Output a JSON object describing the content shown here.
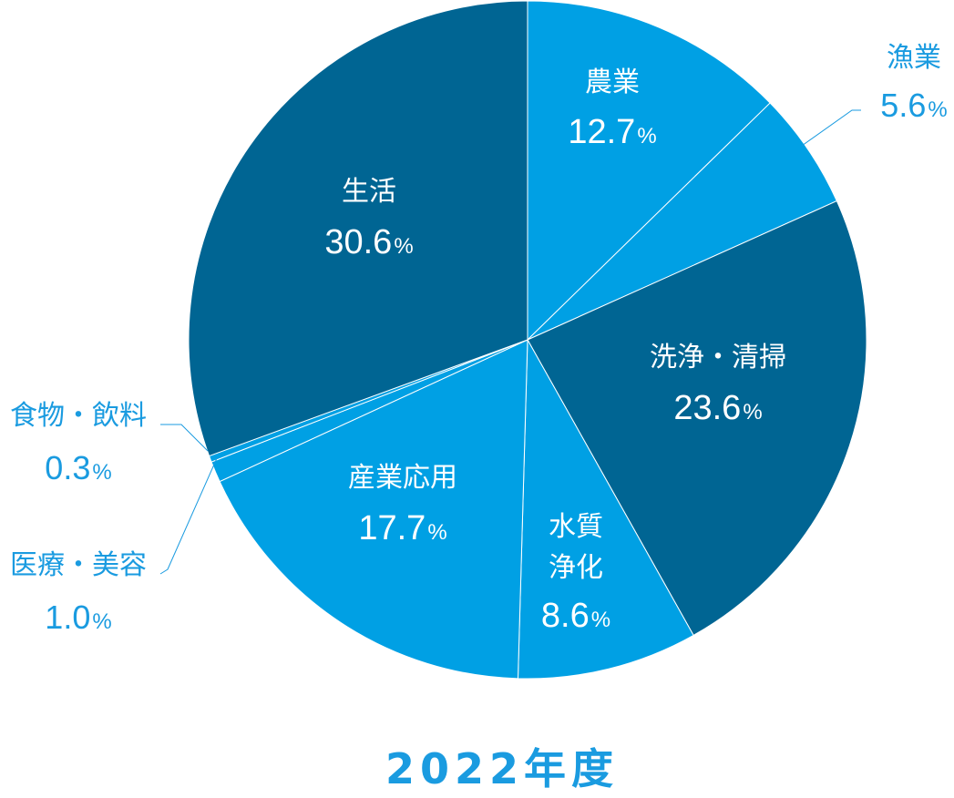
{
  "chart_data": {
    "type": "pie",
    "title": "2022年度",
    "unit": "%",
    "start_angle_deg": 0,
    "direction": "clockwise",
    "colors": {
      "dark": "#006593",
      "light": "#00a0e4",
      "outer_text": "#1a9be0",
      "leader_line": "#1a9be0",
      "separator": "#ffffff"
    },
    "slices": [
      {
        "label": "農業",
        "value": 12.7,
        "color": "#00a0e4",
        "label_placement": "inside"
      },
      {
        "label": "漁業",
        "value": 5.6,
        "color": "#00a0e4",
        "label_placement": "outside"
      },
      {
        "label": "洗浄・清掃",
        "value": 23.6,
        "color": "#006593",
        "label_placement": "inside"
      },
      {
        "label": "水質浄化",
        "label_lines": [
          "水質",
          "浄化"
        ],
        "value": 8.6,
        "color": "#00a0e4",
        "label_placement": "inside"
      },
      {
        "label": "産業応用",
        "value": 17.7,
        "color": "#00a0e4",
        "label_placement": "inside"
      },
      {
        "label": "医療・美容",
        "value": 1.0,
        "color": "#00a0e4",
        "label_placement": "outside"
      },
      {
        "label": "食物・飲料",
        "value": 0.3,
        "color": "#00a0e4",
        "label_placement": "outside"
      },
      {
        "label": "生活",
        "value": 30.6,
        "color": "#006593",
        "label_placement": "inside"
      }
    ]
  }
}
